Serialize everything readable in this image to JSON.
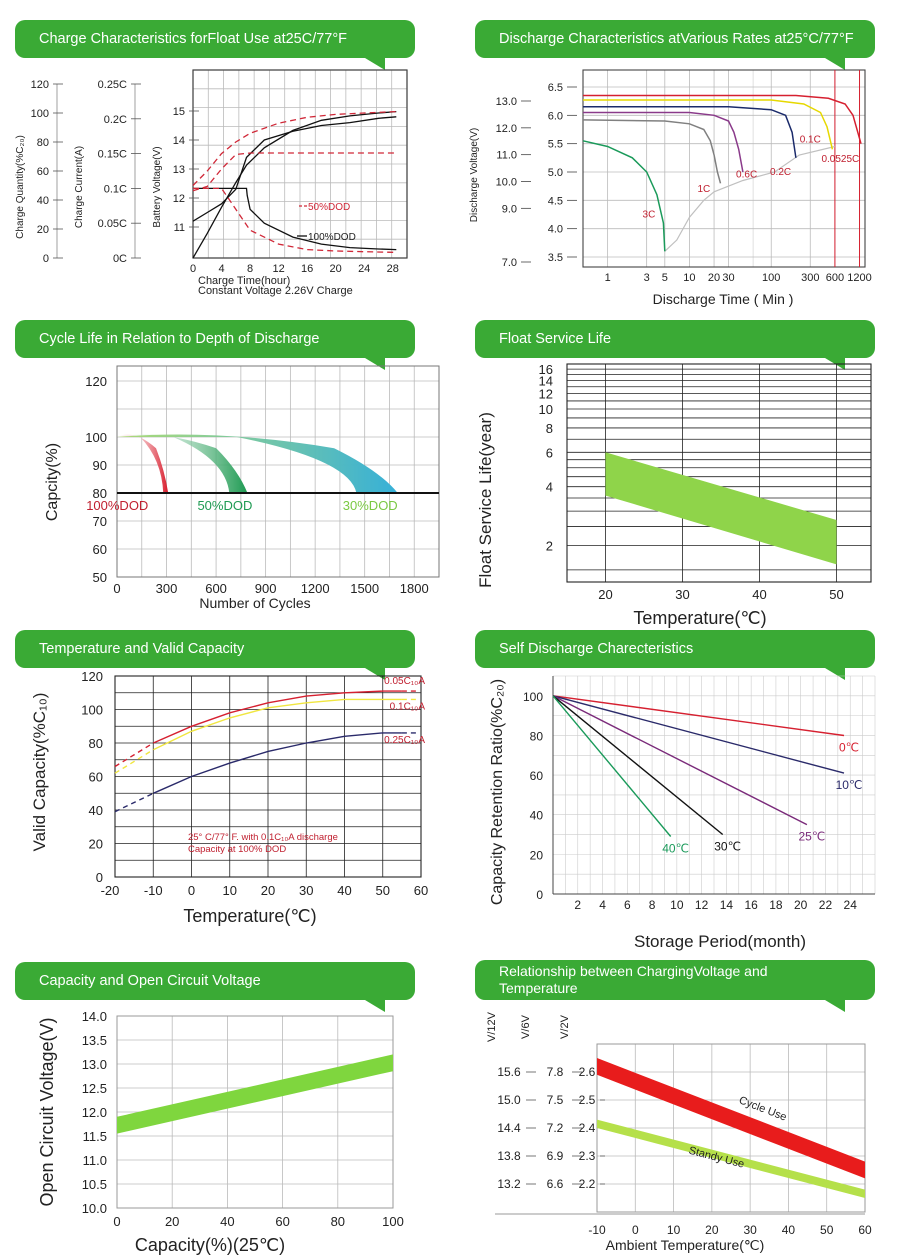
{
  "chart_data": [
    {
      "type": "line",
      "title": "Charge Characteristics forFloat Use at25C/77°F",
      "xlabel": "Charge Time(hour)",
      "footnote": "Constant Voltage 2.26V Charge",
      "x_ticks": [
        "4",
        "8",
        "12",
        "16",
        "20",
        "24",
        "28"
      ],
      "x_zero": "0",
      "xlim": [
        0,
        30
      ],
      "axes": [
        {
          "label": "Charge Quantity(%C₂₀)",
          "ticks": [
            "0",
            "20",
            "40",
            "60",
            "80",
            "100",
            "120"
          ]
        },
        {
          "label": "Charge Current(A)",
          "ticks": [
            "0C",
            "0.05C",
            "0.1C",
            "0.15C",
            "0.2C",
            "0.25C"
          ]
        },
        {
          "label": "Battery Voltage(V)",
          "ticks": [
            "11",
            "12",
            "13",
            "14",
            "15"
          ]
        }
      ],
      "legend": [
        "50%DOD",
        "100%DOD"
      ],
      "series": [
        {
          "name": "100%DOD",
          "quantity": "voltage",
          "x": [
            0,
            2,
            4,
            6,
            7.5,
            10,
            14,
            18,
            22,
            26,
            28.5
          ],
          "y": [
            11.2,
            11.5,
            11.8,
            12.3,
            13.4,
            14.0,
            14.3,
            14.5,
            14.6,
            14.75,
            14.8
          ]
        },
        {
          "name": "100%DOD",
          "quantity": "current",
          "x": [
            0,
            7.5,
            7.6,
            8,
            10,
            14,
            18,
            22,
            26,
            28.5
          ],
          "y": [
            0.1,
            0.1,
            0.09,
            0.07,
            0.05,
            0.03,
            0.02,
            0.015,
            0.013,
            0.012
          ]
        },
        {
          "name": "100%DOD",
          "quantity": "charge",
          "x": [
            0,
            2,
            4,
            6,
            7.5,
            10,
            14,
            18,
            22,
            26,
            28.5
          ],
          "y": [
            0,
            17,
            35,
            52,
            64,
            76,
            88,
            95,
            98,
            100,
            101
          ]
        },
        {
          "name": "50%DOD",
          "quantity": "voltage",
          "x": [
            0,
            2,
            4,
            6,
            8,
            12,
            16,
            20,
            24,
            28.5
          ],
          "y": [
            12.25,
            12.4,
            13.0,
            13.5,
            13.55,
            13.55,
            13.55,
            13.55,
            13.55,
            13.55
          ]
        },
        {
          "name": "50%DOD",
          "quantity": "current",
          "x": [
            0,
            4,
            5,
            6,
            8,
            12,
            16,
            20,
            24,
            28.5
          ],
          "y": [
            0.1,
            0.1,
            0.085,
            0.07,
            0.04,
            0.02,
            0.012,
            0.01,
            0.009,
            0.008
          ]
        },
        {
          "name": "50%DOD",
          "quantity": "charge",
          "x": [
            0,
            2,
            4,
            6,
            8,
            12,
            16,
            20,
            24,
            28.5
          ],
          "y": [
            50,
            60,
            72,
            80,
            86,
            93,
            97,
            99,
            100,
            101
          ]
        }
      ]
    },
    {
      "type": "line",
      "title": "Discharge Characteristics atVarious Rates at25°C/77°F",
      "xlabel": "Discharge Time ( Min )",
      "ylabel": "Discharge Voltage(V)",
      "x_scale": "log",
      "x_ticks": [
        "1",
        "3",
        "5",
        "10",
        "20",
        "30",
        "100",
        "300",
        "600",
        "1200"
      ],
      "y_ticks_12v": [
        "7.0",
        "9.0",
        "10.0",
        "11.0",
        "12.0",
        "13.0"
      ],
      "y_ticks_6v": [
        "3.5",
        "4.0",
        "4.5",
        "5.0",
        "5.5",
        "6.0",
        "6.5"
      ],
      "y_unit": "6V",
      "series": [
        {
          "name": "3C",
          "color": "#1a9a5a",
          "x": [
            0.5,
            1,
            2,
            3,
            4,
            4.8,
            5
          ],
          "y": [
            5.55,
            5.45,
            5.25,
            5.0,
            4.6,
            4.1,
            3.6
          ]
        },
        {
          "name": "1C",
          "color": "#808080",
          "x": [
            0.5,
            5,
            10,
            15,
            18,
            20,
            22,
            24
          ],
          "y": [
            5.92,
            5.9,
            5.85,
            5.75,
            5.55,
            5.3,
            5.0,
            4.8
          ]
        },
        {
          "name": "0.6C",
          "color": "#8a3a8a",
          "x": [
            0.5,
            10,
            20,
            30,
            35,
            40,
            45
          ],
          "y": [
            6.05,
            6.05,
            6.0,
            5.9,
            5.7,
            5.4,
            5.0
          ]
        },
        {
          "name": "0.2C",
          "color": "#1a2a6a",
          "x": [
            0.5,
            30,
            100,
            150,
            180,
            200
          ],
          "y": [
            6.15,
            6.15,
            6.1,
            6.0,
            5.7,
            5.25
          ]
        },
        {
          "name": "0.1C",
          "color": "#e6d800",
          "x": [
            0.5,
            100,
            250,
            400,
            480,
            560
          ],
          "y": [
            6.27,
            6.27,
            6.2,
            6.05,
            5.8,
            5.4
          ]
        },
        {
          "name": "0.0525C",
          "color": "#d62030",
          "x": [
            0.5,
            200,
            500,
            800,
            1000,
            1250
          ],
          "y": [
            6.35,
            6.35,
            6.3,
            6.2,
            6.0,
            5.5
          ]
        }
      ],
      "guides": {
        "color": "#d62030",
        "x": [
          600,
          1200
        ]
      },
      "connector": {
        "color": "#c0c0c0",
        "x": [
          5,
          7,
          10,
          15,
          20,
          45,
          110,
          220,
          600
        ],
        "y": [
          3.6,
          3.8,
          4.2,
          4.5,
          4.65,
          4.85,
          5.0,
          5.3,
          5.45
        ]
      }
    },
    {
      "type": "area",
      "title": "Cycle Life in Relation to Depth of Discharge",
      "xlabel": "Number of Cycles",
      "ylabel": "Capcity(%)",
      "xlim": [
        0,
        1950
      ],
      "ylim": [
        50,
        120
      ],
      "x_ticks": [
        "0",
        "300",
        "600",
        "900",
        "1200",
        "1500",
        "1800"
      ],
      "y_ticks": [
        "50",
        "60",
        "70",
        "80",
        "90",
        "100",
        "120"
      ],
      "reference_line": 80,
      "series": [
        {
          "name": "100%DOD",
          "color": "#d81a2a",
          "labelColor": "#c02030",
          "x_start": 0,
          "peak_x": 100,
          "end_inner": 280,
          "end_outer": 310
        },
        {
          "name": "50%DOD",
          "color": "#1e9a52",
          "labelColor": "#1e9a52",
          "x_start": 0,
          "peak_x": 250,
          "end_inner": 680,
          "end_outer": 790
        },
        {
          "name": "30%DOD",
          "color": "#36b0d8",
          "color2": "#a8d86a",
          "labelColor": "#7ac943",
          "x_start": 0,
          "peak_x": 600,
          "end_inner": 1450,
          "end_outer": 1700
        }
      ]
    },
    {
      "type": "area",
      "title": "Float Service Life",
      "xlabel": "Temperature(℃)",
      "ylabel": "Float Service Life(year)",
      "y_scale": "log",
      "x_ticks": [
        "20",
        "30",
        "40",
        "50"
      ],
      "y_ticks": [
        "2",
        "4",
        "6",
        "8",
        "10",
        "12",
        "14",
        "16"
      ],
      "band": {
        "color": "#8fd44a",
        "x": [
          20,
          50
        ],
        "upper": [
          6.0,
          2.7
        ],
        "lower": [
          3.6,
          1.6
        ]
      }
    },
    {
      "type": "line",
      "title": "Temperature and Valid Capacity",
      "xlabel": "Temperature(℃)",
      "ylabel": "Valid Capacity(%C₁₀)",
      "xlim": [
        -20,
        60
      ],
      "ylim": [
        0,
        120
      ],
      "x_ticks": [
        "-20",
        "-10",
        "0",
        "10",
        "20",
        "30",
        "40",
        "50",
        "60"
      ],
      "y_ticks": [
        "0",
        "20",
        "40",
        "60",
        "80",
        "100",
        "120"
      ],
      "annotation": [
        "25° C/77° F. with  0.1C₁₀A discharge",
        "Capacity at 100% DOD"
      ],
      "series": [
        {
          "name": "0.05C₁₀A",
          "color": "#d62030",
          "x": [
            -20,
            -10,
            0,
            10,
            20,
            30,
            40,
            50,
            55
          ],
          "y": [
            66,
            80,
            90,
            98,
            104,
            108,
            110,
            111,
            111
          ]
        },
        {
          "name": "0.1C₁₀A",
          "color": "#f0e640",
          "x": [
            -20,
            -10,
            0,
            10,
            20,
            30,
            40,
            50,
            55
          ],
          "y": [
            62,
            76,
            87,
            95,
            101,
            104,
            106,
            106,
            106
          ]
        },
        {
          "name": "0.25C₁₀A",
          "color": "#2a2a6a",
          "x": [
            -20,
            -10,
            0,
            10,
            20,
            30,
            40,
            50,
            55
          ],
          "y": [
            39,
            50,
            60,
            68,
            75,
            80,
            84,
            86,
            86
          ]
        }
      ],
      "extension_x": [
        55,
        60
      ]
    },
    {
      "type": "line",
      "title": "Self Discharge Charecteristics",
      "xlabel": "Storage Period(month)",
      "ylabel": "Capacity Retention Ratio(%C₂₀)",
      "xlim": [
        0,
        26
      ],
      "ylim": [
        0,
        100
      ],
      "x_ticks": [
        "2",
        "4",
        "6",
        "8",
        "10",
        "12",
        "14",
        "16",
        "18",
        "20",
        "22",
        "24"
      ],
      "y_ticks": [
        "0",
        "20",
        "40",
        "60",
        "80",
        "100"
      ],
      "series": [
        {
          "name": "0℃",
          "color": "#d62030",
          "labelColor": "#d62030",
          "x": [
            0,
            23.5
          ],
          "y": [
            100,
            80
          ]
        },
        {
          "name": "10℃",
          "color": "#2a2a6a",
          "labelColor": "#2a2a6a",
          "x": [
            0,
            23.5
          ],
          "y": [
            100,
            61
          ]
        },
        {
          "name": "25℃",
          "color": "#7a2a7a",
          "labelColor": "#7a2a7a",
          "x": [
            0,
            20.5
          ],
          "y": [
            100,
            35
          ]
        },
        {
          "name": "30℃",
          "color": "#111111",
          "labelColor": "#111111",
          "x": [
            0,
            13.7
          ],
          "y": [
            100,
            30
          ]
        },
        {
          "name": "40℃",
          "color": "#1a9a5a",
          "labelColor": "#1a9a5a",
          "x": [
            0,
            9.5
          ],
          "y": [
            100,
            29
          ]
        }
      ]
    },
    {
      "type": "area",
      "title": "Capacity and Open Circuit Voltage",
      "xlabel": "Capacity(%)(25℃)",
      "ylabel": "Open Circuit Voltage(V)",
      "xlim": [
        0,
        100
      ],
      "ylim": [
        10.0,
        14.0
      ],
      "x_ticks": [
        "0",
        "20",
        "40",
        "60",
        "80",
        "100"
      ],
      "y_ticks": [
        "10.0",
        "10.5",
        "11.0",
        "11.5",
        "12.0",
        "12.5",
        "13.0",
        "13.5",
        "14.0"
      ],
      "band": {
        "color": "#7fd63e",
        "x": [
          0,
          100
        ],
        "upper": [
          11.9,
          13.2
        ],
        "lower": [
          11.55,
          12.85
        ]
      }
    },
    {
      "type": "area",
      "title": "Relationship between ChargingVoltage and Temperature",
      "xlabel": "Ambient Temperature(℃)",
      "axis_headers": [
        "V/12V",
        "V/6V",
        "V/2V"
      ],
      "xlim": [
        -10,
        60
      ],
      "ylim": [
        2.1,
        2.7
      ],
      "x_ticks": [
        "-10",
        "0",
        "10",
        "20",
        "30",
        "40",
        "50",
        "60"
      ],
      "y_ticks_12v": [
        "13.2",
        "13.8",
        "14.4",
        "15.0",
        "15.6"
      ],
      "y_ticks_6v": [
        "6.6",
        "6.9",
        "7.2",
        "7.5",
        "7.8"
      ],
      "y_ticks_2v": [
        "2.2",
        "2.3",
        "2.4",
        "2.5",
        "2.6"
      ],
      "bands": [
        {
          "name": "Cycle Use",
          "color": "#e81c1c",
          "x": [
            -10,
            60
          ],
          "upper": [
            2.65,
            2.28
          ],
          "lower": [
            2.59,
            2.22
          ]
        },
        {
          "name": "Standy Use",
          "color": "#b5e04a",
          "x": [
            -10,
            60
          ],
          "upper": [
            2.43,
            2.18
          ],
          "lower": [
            2.4,
            2.15
          ]
        }
      ]
    }
  ]
}
